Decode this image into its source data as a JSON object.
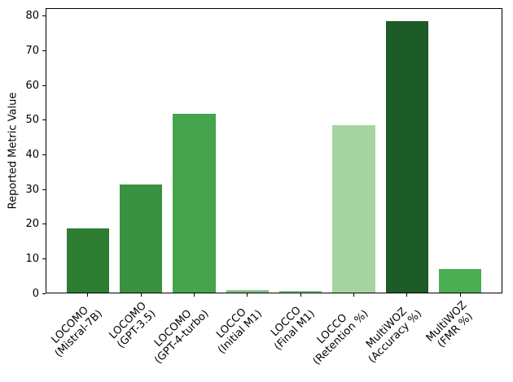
{
  "figure": {
    "background": "#ffffff",
    "axis_color": "#000000"
  },
  "chart_data": {
    "type": "bar",
    "title": "",
    "xlabel": "",
    "ylabel": "Reported Metric Value",
    "ylim": [
      0,
      82.3
    ],
    "yticks": [
      0,
      10,
      20,
      30,
      40,
      50,
      60,
      70,
      80
    ],
    "grid": false,
    "legend": "none",
    "bar_label_rotation": 45,
    "categories": [
      "LOCOMO\n(Mistral-7B)",
      "LOCOMO\n(GPT-3.5)",
      "LOCOMO\n(GPT-4-turbo)",
      "LOCCO\n(Initial M1)",
      "LOCCO\n(Final M1)",
      "LOCCO\n(Retention %)",
      "MultiWOZ\n(Accuracy %)",
      "MultiWOZ\n(FMR %)"
    ],
    "values": [
      18.5,
      31.3,
      51.5,
      0.7,
      0.4,
      48.2,
      78.3,
      6.9
    ],
    "bar_colors": [
      "#2d7e33",
      "#3b9142",
      "#46a44c",
      "#7dc581",
      "#7dc581",
      "#a5d4a1",
      "#1d5c26",
      "#4bad51"
    ]
  }
}
